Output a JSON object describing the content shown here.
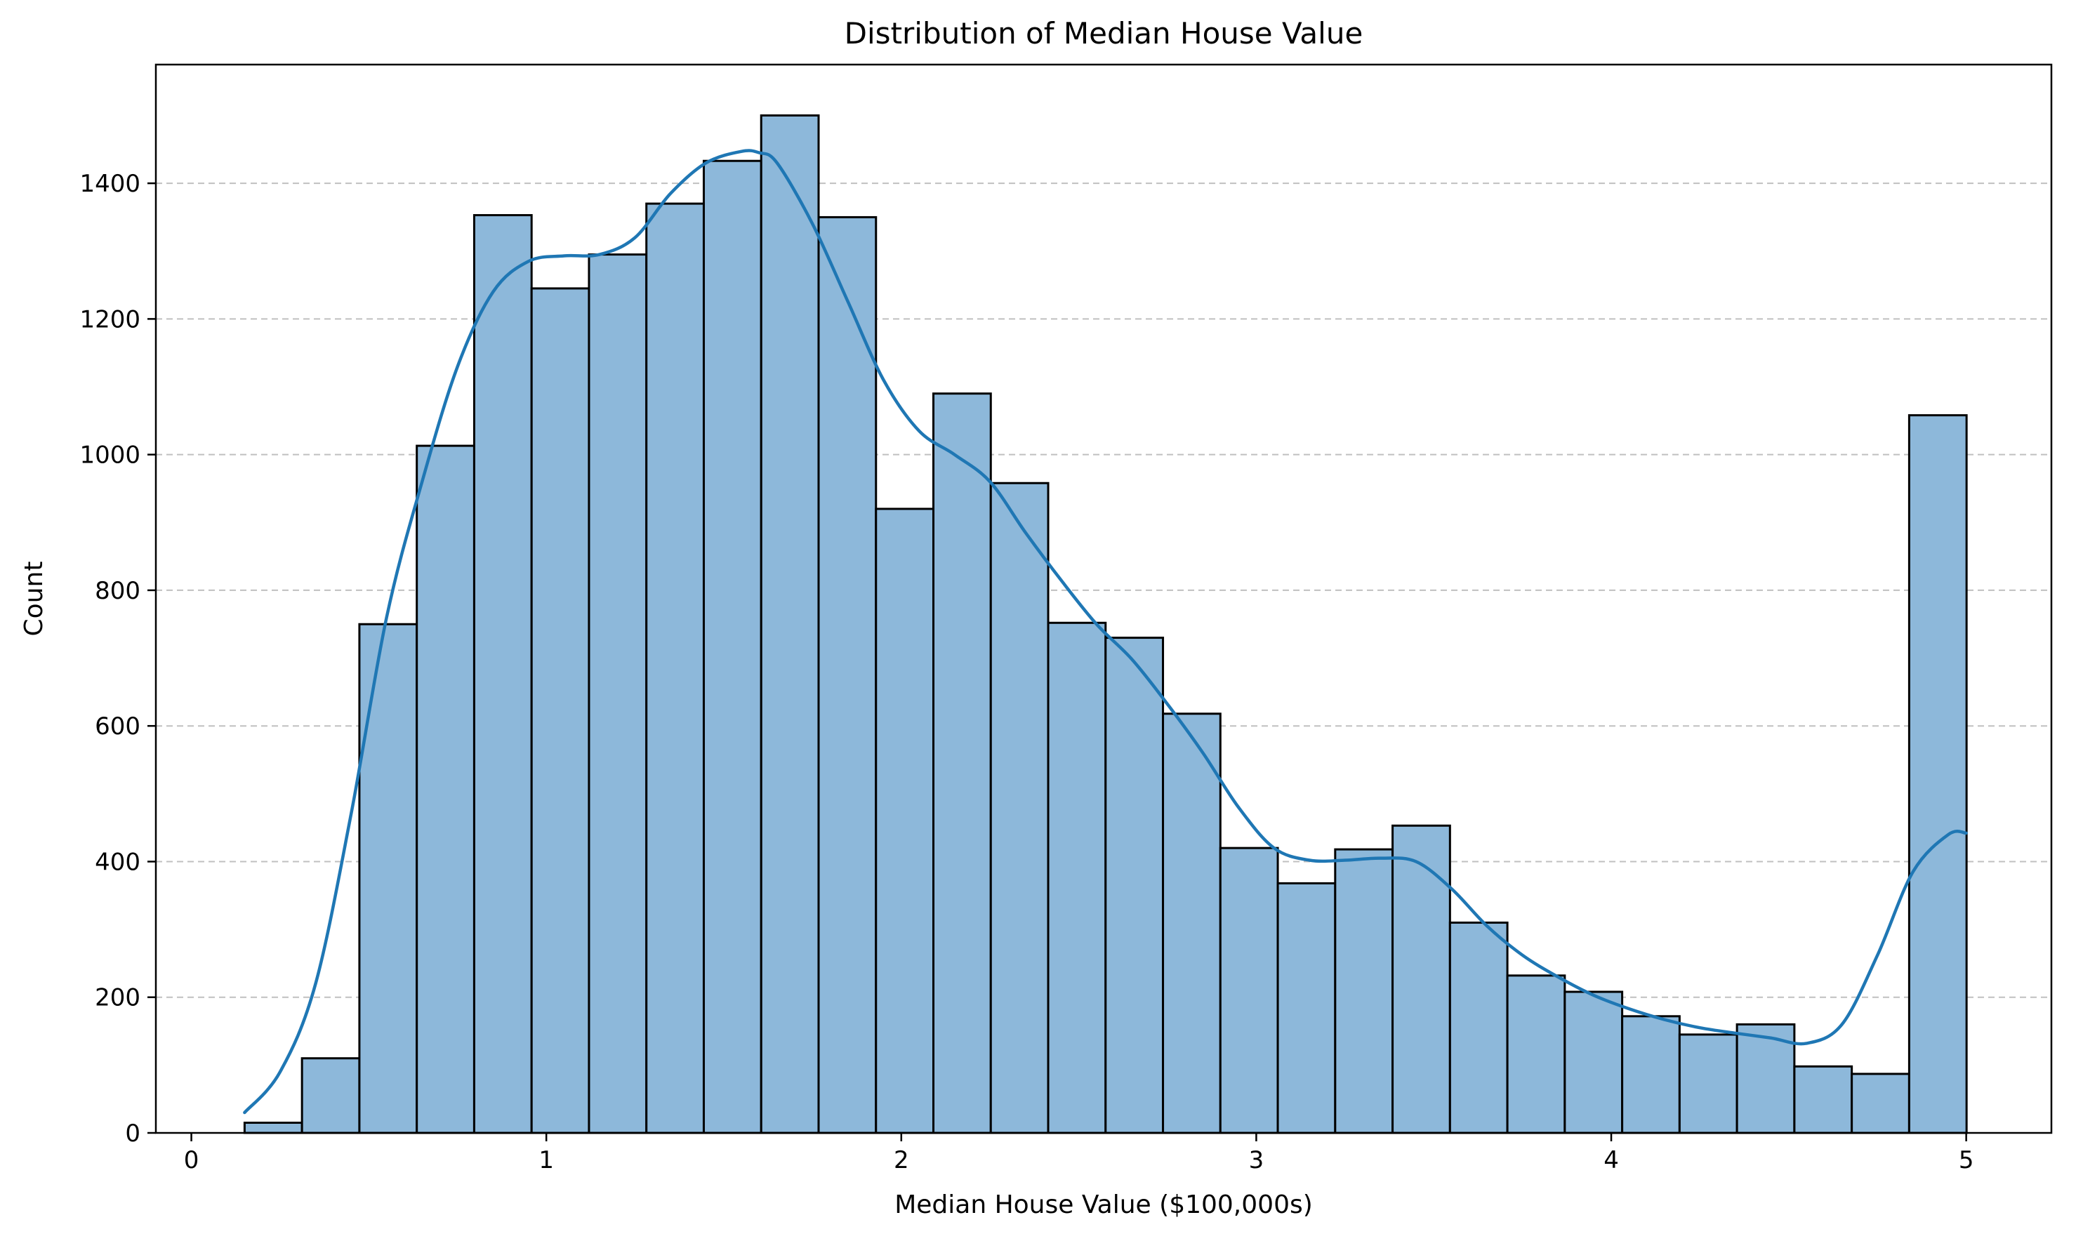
{
  "chart_data": {
    "type": "bar",
    "title": "Distribution of Median House Value",
    "xlabel": "Median House Value ($100,000s)",
    "ylabel": "Count",
    "xlim": [
      -0.1,
      5.24
    ],
    "ylim": [
      0,
      1575
    ],
    "x_ticks": [
      0,
      1,
      2,
      3,
      4,
      5
    ],
    "y_ticks": [
      0,
      200,
      400,
      600,
      800,
      1000,
      1200,
      1400
    ],
    "grid": "y-dashed",
    "colors": {
      "bar_fill": "#8db8da",
      "bar_edge": "#000000",
      "kde_line": "#1f77b4",
      "grid": "#c0c0c0"
    },
    "bins": {
      "start": 0.15,
      "width": 0.1617,
      "counts": [
        15,
        110,
        750,
        1013,
        1353,
        1245,
        1295,
        1370,
        1433,
        1500,
        1350,
        920,
        1090,
        958,
        752,
        730,
        618,
        420,
        368,
        418,
        453,
        310,
        232,
        208,
        172,
        145,
        160,
        98,
        87,
        1058
      ]
    },
    "kde": {
      "x": [
        0.15,
        0.25,
        0.35,
        0.45,
        0.55,
        0.65,
        0.75,
        0.85,
        0.95,
        1.05,
        1.15,
        1.25,
        1.35,
        1.45,
        1.55,
        1.6,
        1.65,
        1.75,
        1.85,
        1.95,
        2.05,
        2.15,
        2.25,
        2.35,
        2.45,
        2.55,
        2.65,
        2.75,
        2.85,
        2.95,
        3.05,
        3.15,
        3.25,
        3.35,
        3.45,
        3.55,
        3.65,
        3.75,
        3.85,
        3.95,
        4.05,
        4.15,
        4.25,
        4.35,
        4.45,
        4.55,
        4.65,
        4.75,
        4.85,
        4.95,
        5.0
      ],
      "y": [
        30,
        90,
        220,
        470,
        760,
        960,
        1130,
        1240,
        1285,
        1293,
        1295,
        1320,
        1385,
        1430,
        1447,
        1445,
        1430,
        1340,
        1225,
        1110,
        1035,
        1000,
        960,
        885,
        815,
        750,
        698,
        632,
        560,
        480,
        420,
        402,
        402,
        405,
        400,
        360,
        305,
        262,
        230,
        203,
        183,
        167,
        155,
        147,
        140,
        132,
        160,
        262,
        385,
        440,
        442
      ]
    }
  }
}
